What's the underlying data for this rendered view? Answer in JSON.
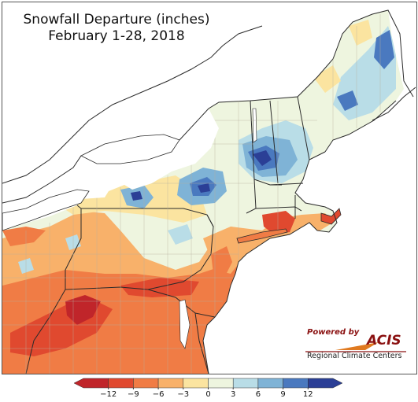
{
  "title": "Snowfall Departure (inches)",
  "subtitle": "February 1-28, 2018",
  "logo": {
    "powered_by": "Powered by",
    "name": "ACIS",
    "org": "Regional Climate Centers"
  },
  "legend": {
    "ticks": [
      "−12",
      "−9",
      "−6",
      "−3",
      "0",
      "3",
      "6",
      "9",
      "12"
    ],
    "colors": [
      "#c0252a",
      "#e0492f",
      "#f07c45",
      "#f8b16a",
      "#fbe4a0",
      "#eef5df",
      "#b9dde7",
      "#7fb3d6",
      "#4a79bf",
      "#2b3f96"
    ]
  },
  "colors": {
    "lake": "#ffffff",
    "ocean": "#ffffff",
    "outline": "#2a2a2a",
    "county": "#b8b0a0"
  }
}
